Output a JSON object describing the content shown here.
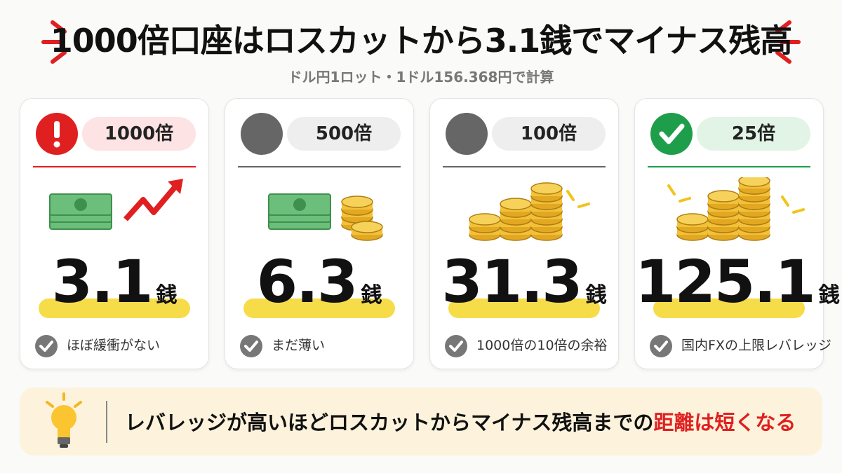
{
  "header": {
    "title": "1000倍口座はロスカットから3.1銭でマイナス残高",
    "subtitle": "ドル円1ロット・1ドル156.368円で計算"
  },
  "cards": [
    {
      "leverage": "1000倍",
      "value": "3.1",
      "unit": "銭",
      "note": "ほぼ緩衝がない"
    },
    {
      "leverage": "500倍",
      "value": "6.3",
      "unit": "銭",
      "note": "まだ薄い"
    },
    {
      "leverage": "100倍",
      "value": "31.3",
      "unit": "銭",
      "note": "1000倍の10倍の余裕"
    },
    {
      "leverage": "25倍",
      "value": "125.1",
      "unit": "銭",
      "note": "国内FXの上限レバレッジ"
    }
  ],
  "footer": {
    "text": "レバレッジが高いほどロスカットからマイナス残高までの",
    "highlight": "距離は短くなる"
  }
}
